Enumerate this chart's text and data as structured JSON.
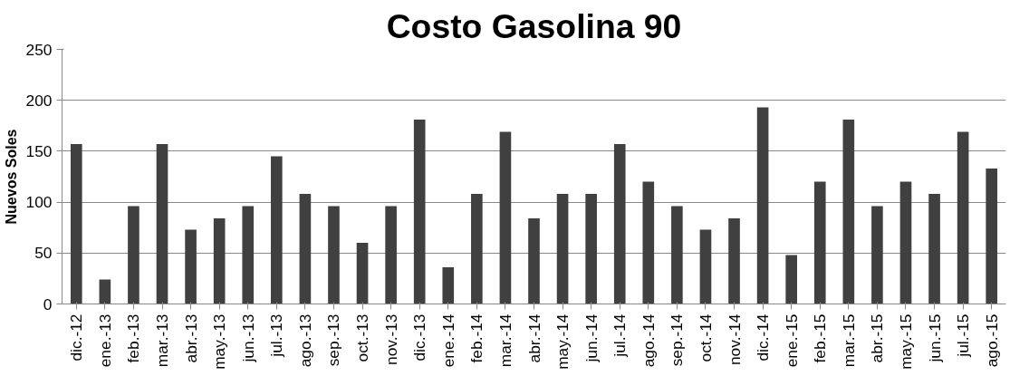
{
  "chart_data": {
    "type": "bar",
    "title": "Costo Gasolina 90",
    "ylabel": "Nuevos Soles",
    "categories": [
      "dic.-12",
      "ene.-13",
      "feb.-13",
      "mar.-13",
      "abr.-13",
      "may.-13",
      "jun.-13",
      "jul.-13",
      "ago.-13",
      "sep.-13",
      "oct.-13",
      "nov.-13",
      "dic.-13",
      "ene.-14",
      "feb.-14",
      "mar.-14",
      "abr.-14",
      "may.-14",
      "jun.-14",
      "jul.-14",
      "ago.-14",
      "sep.-14",
      "oct.-14",
      "nov.-14",
      "dic.-14",
      "ene.-15",
      "feb.-15",
      "mar.-15",
      "abr.-15",
      "may.-15",
      "jun.-15",
      "jul.-15",
      "ago.-15"
    ],
    "values": [
      157,
      24,
      96,
      157,
      73,
      84,
      96,
      145,
      108,
      96,
      60,
      96,
      181,
      36,
      108,
      169,
      84,
      108,
      108,
      157,
      120,
      96,
      73,
      84,
      193,
      48,
      120,
      181,
      96,
      120,
      108,
      169,
      133
    ],
    "color": "#404040",
    "ylim": [
      0,
      250
    ],
    "yticks": [
      0,
      50,
      100,
      150,
      200,
      250
    ],
    "grid": "y"
  }
}
